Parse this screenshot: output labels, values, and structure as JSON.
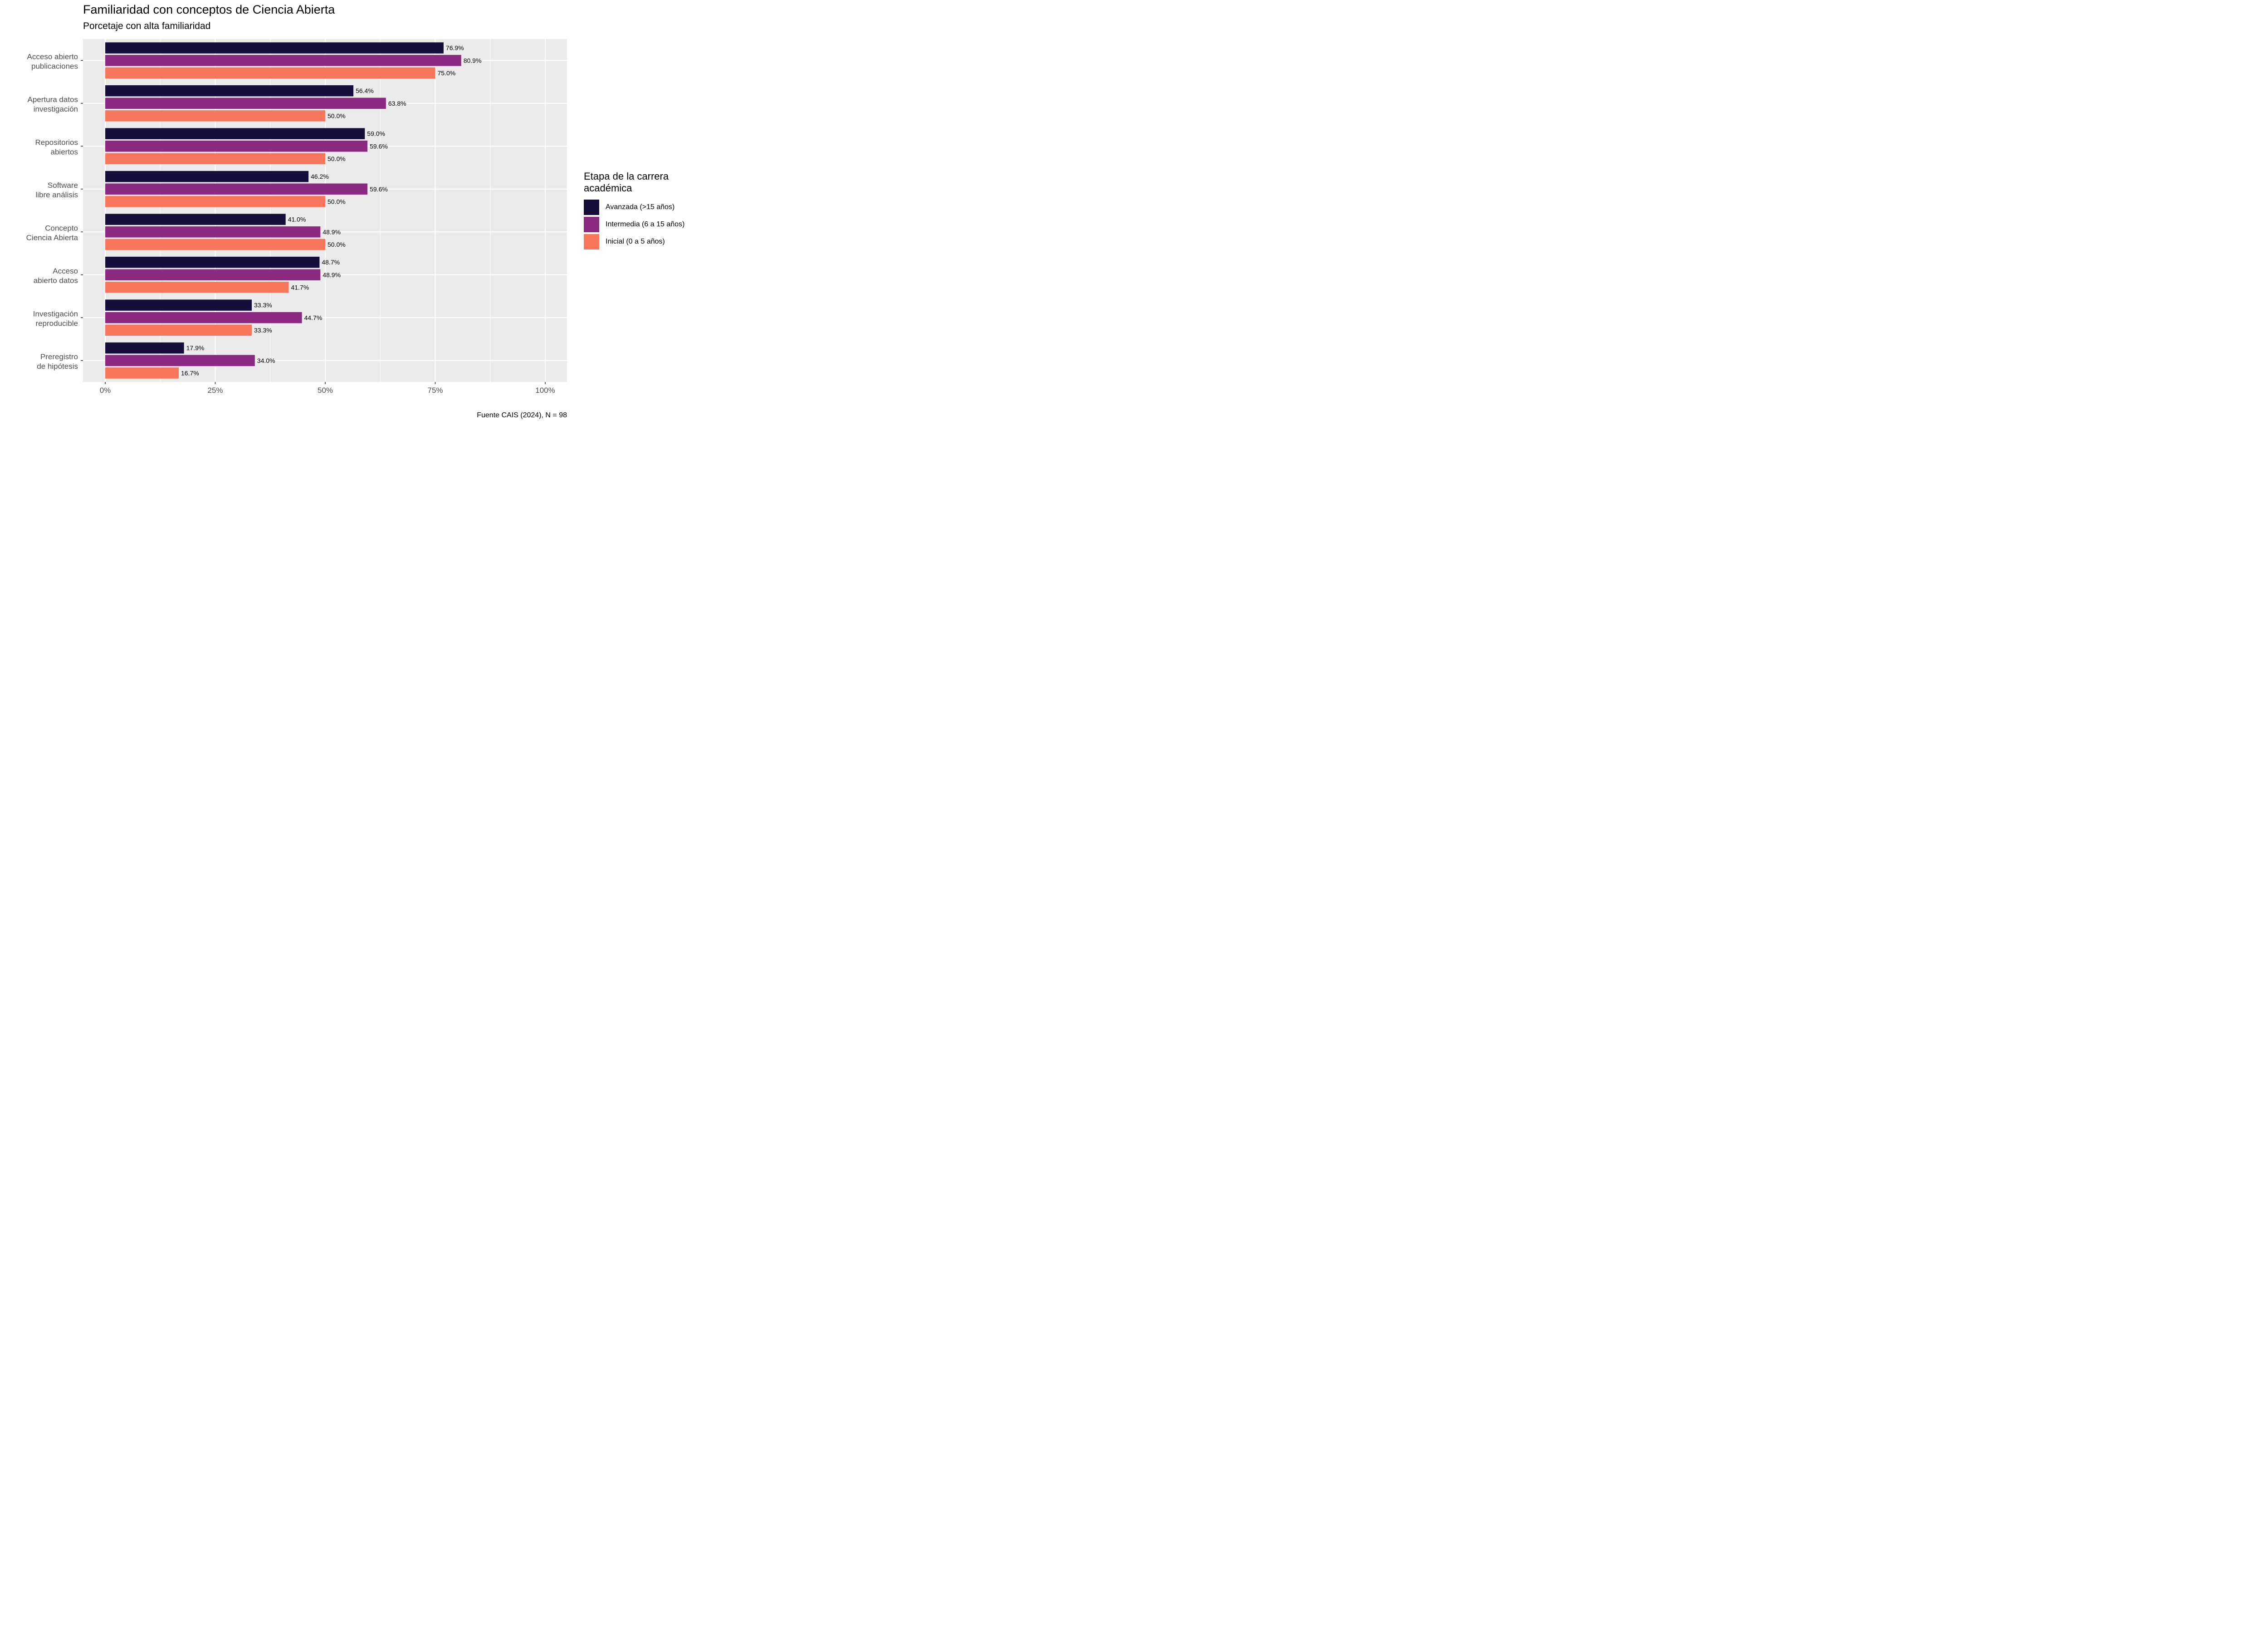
{
  "title": "Familiaridad con conceptos de Ciencia Abierta",
  "subtitle": "Porcetaje con alta familiaridad",
  "caption": "Fuente CAIS (2024), N = 98",
  "legend": {
    "title": "Etapa de la carrera académica",
    "position": "right"
  },
  "colors": {
    "panel_background": "#EBEBEB",
    "grid": "#FFFFFF"
  },
  "chart_data": {
    "type": "bar",
    "orientation": "horizontal",
    "categories": [
      "Acceso abierto publicaciones",
      "Apertura datos investigación",
      "Repositorios abiertos",
      "Software libre análisis",
      "Concepto Ciencia Abierta",
      "Acceso abierto datos",
      "Investigación reproducible",
      "Preregistro de hipótesis"
    ],
    "category_lines": [
      [
        "Acceso abierto",
        "publicaciones"
      ],
      [
        "Apertura datos",
        "investigación"
      ],
      [
        "Repositorios",
        "abiertos"
      ],
      [
        "Software",
        "libre análisis"
      ],
      [
        "Concepto",
        "Ciencia Abierta"
      ],
      [
        "Acceso",
        "abierto datos"
      ],
      [
        "Investigación",
        "reproducible"
      ],
      [
        "Preregistro",
        "de hipótesis"
      ]
    ],
    "series": [
      {
        "name": "Avanzada (>15 años)",
        "color": "#160F3B",
        "values": [
          76.9,
          56.4,
          59.0,
          46.2,
          41.0,
          48.7,
          33.3,
          17.9
        ],
        "labels": [
          "76.9%",
          "56.4%",
          "59.0%",
          "46.2%",
          "41.0%",
          "48.7%",
          "33.3%",
          "17.9%"
        ]
      },
      {
        "name": "Intermedia (6 a 15 años)",
        "color": "#8C2981",
        "values": [
          80.9,
          63.8,
          59.6,
          59.6,
          48.9,
          48.9,
          44.7,
          34.0
        ],
        "labels": [
          "80.9%",
          "63.8%",
          "59.6%",
          "59.6%",
          "48.9%",
          "48.9%",
          "44.7%",
          "34.0%"
        ]
      },
      {
        "name": "Inicial (0 a 5 años)",
        "color": "#F8765C",
        "values": [
          75.0,
          50.0,
          50.0,
          50.0,
          50.0,
          41.7,
          33.3,
          16.7
        ],
        "labels": [
          "75.0%",
          "50.0%",
          "50.0%",
          "50.0%",
          "50.0%",
          "41.7%",
          "33.3%",
          "16.7%"
        ]
      }
    ],
    "xlim": [
      -5,
      105
    ],
    "x_ticks": [
      0,
      25,
      50,
      75,
      100
    ],
    "x_tick_labels": [
      "0%",
      "25%",
      "50%",
      "75%",
      "100%"
    ],
    "grid": true
  }
}
